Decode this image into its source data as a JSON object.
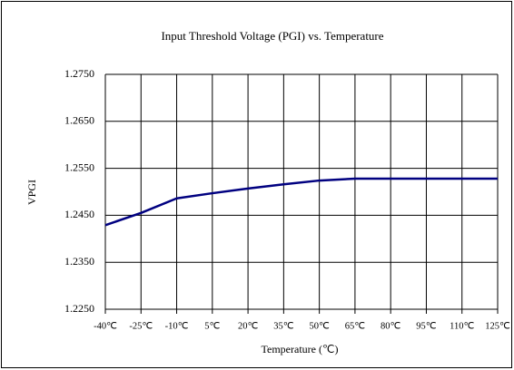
{
  "chart_data": {
    "type": "line",
    "title": "Input Threshold Voltage (PGI) vs. Temperature",
    "x_label": "Temperature (℃)",
    "y_label": "VPGI",
    "categories": [
      "-40℃",
      "-25℃",
      "-10℃",
      "5℃",
      "20℃",
      "35℃",
      "50℃",
      "65℃",
      "80℃",
      "95℃",
      "110℃",
      "125℃"
    ],
    "series": [
      {
        "name": "VPGI",
        "color": "#000080",
        "values": [
          1.2429,
          1.2455,
          1.2486,
          1.2497,
          1.2507,
          1.2516,
          1.2524,
          1.2528,
          1.2528,
          1.2528,
          1.2528,
          1.2528
        ]
      }
    ],
    "ylim": [
      1.225,
      1.275
    ],
    "yticks": [
      {
        "value": 1.225,
        "label": "1.2250"
      },
      {
        "value": 1.235,
        "label": "1.2350"
      },
      {
        "value": 1.245,
        "label": "1.2450"
      },
      {
        "value": 1.255,
        "label": "1.2550"
      },
      {
        "value": 1.265,
        "label": "1.2650"
      },
      {
        "value": 1.275,
        "label": "1.2750"
      }
    ],
    "grid": true
  }
}
